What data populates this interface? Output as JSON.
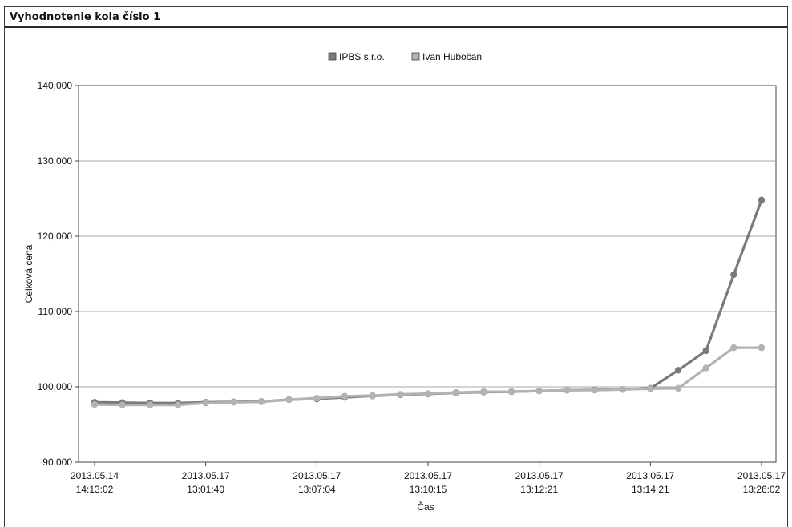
{
  "panel": {
    "title": "Vyhodnotenie kola číslo 1"
  },
  "chart_data": {
    "type": "line",
    "title": "",
    "xlabel": "Čas",
    "ylabel": "Celková cena",
    "ylim": [
      90000,
      140000
    ],
    "yticks": [
      90000,
      100000,
      110000,
      120000,
      130000,
      140000
    ],
    "ytick_labels": [
      "90,000",
      "100,000",
      "110,000",
      "120,000",
      "130,000",
      "140,000"
    ],
    "grid": "horizontal",
    "legend": "top-center",
    "xtick_labels": [
      {
        "index": 0,
        "line1": "2013.05.14",
        "line2": "14:13:02"
      },
      {
        "index": 4,
        "line1": "2013.05.17",
        "line2": "13:01:40"
      },
      {
        "index": 8,
        "line1": "2013.05.17",
        "line2": "13:07:04"
      },
      {
        "index": 12,
        "line1": "2013.05.17",
        "line2": "13:10:15"
      },
      {
        "index": 16,
        "line1": "2013.05.17",
        "line2": "13:12:21"
      },
      {
        "index": 20,
        "line1": "2013.05.17",
        "line2": "13:14:21"
      },
      {
        "index": 24,
        "line1": "2013.05.17",
        "line2": "13:26:02"
      }
    ],
    "series": [
      {
        "name": "IPBS s.r.o.",
        "color": "#7a7a7a",
        "values": [
          97950,
          97900,
          97850,
          97850,
          97950,
          98000,
          98050,
          98300,
          98400,
          98600,
          98800,
          98950,
          99050,
          99200,
          99300,
          99350,
          99450,
          99550,
          99600,
          99650,
          99800,
          102200,
          104800,
          114900,
          124800
        ]
      },
      {
        "name": "Ivan Hubočan",
        "color": "#b3b3b3",
        "values": [
          97650,
          97600,
          97600,
          97600,
          97850,
          97950,
          98000,
          98300,
          98500,
          98750,
          98850,
          99000,
          99100,
          99250,
          99350,
          99350,
          99450,
          99550,
          99550,
          99650,
          99750,
          99800,
          102500,
          105200,
          105200
        ]
      }
    ]
  }
}
